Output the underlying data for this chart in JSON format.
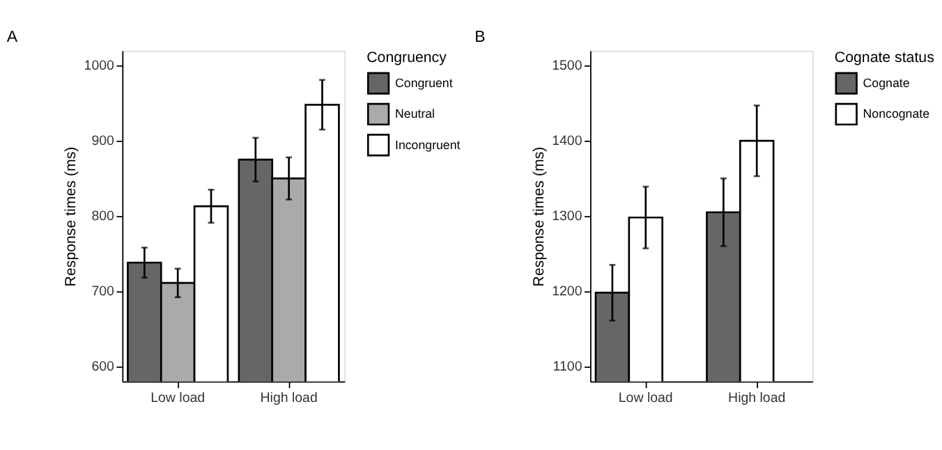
{
  "chart_data": [
    {
      "type": "bar",
      "title": "A",
      "ylabel": "Response times (ms)",
      "legend_title": "Congruency",
      "categories": [
        "Low load",
        "High load"
      ],
      "ylim": [
        580,
        1020
      ],
      "yticks": [
        600,
        700,
        800,
        900,
        1000
      ],
      "grid": false,
      "legend": "right",
      "series": [
        {
          "name": "Congruent",
          "color": "#666666",
          "values": [
            738,
            875
          ],
          "errors": [
            20,
            29
          ]
        },
        {
          "name": "Neutral",
          "color": "#aaaaaa",
          "values": [
            711,
            850
          ],
          "errors": [
            19,
            28
          ]
        },
        {
          "name": "Incongruent",
          "color": "#ffffff",
          "values": [
            813,
            948
          ],
          "errors": [
            22,
            33
          ]
        }
      ]
    },
    {
      "type": "bar",
      "title": "B",
      "ylabel": "Response times (ms)",
      "legend_title": "Cognate status",
      "categories": [
        "Low load",
        "High load"
      ],
      "ylim": [
        1080,
        1520
      ],
      "yticks": [
        1100,
        1200,
        1300,
        1400,
        1500
      ],
      "grid": false,
      "legend": "right",
      "series": [
        {
          "name": "Cognate",
          "color": "#666666",
          "values": [
            1198,
            1305
          ],
          "errors": [
            37,
            45
          ]
        },
        {
          "name": "Noncognate",
          "color": "#ffffff",
          "values": [
            1298,
            1400
          ],
          "errors": [
            41,
            47
          ]
        }
      ]
    }
  ]
}
